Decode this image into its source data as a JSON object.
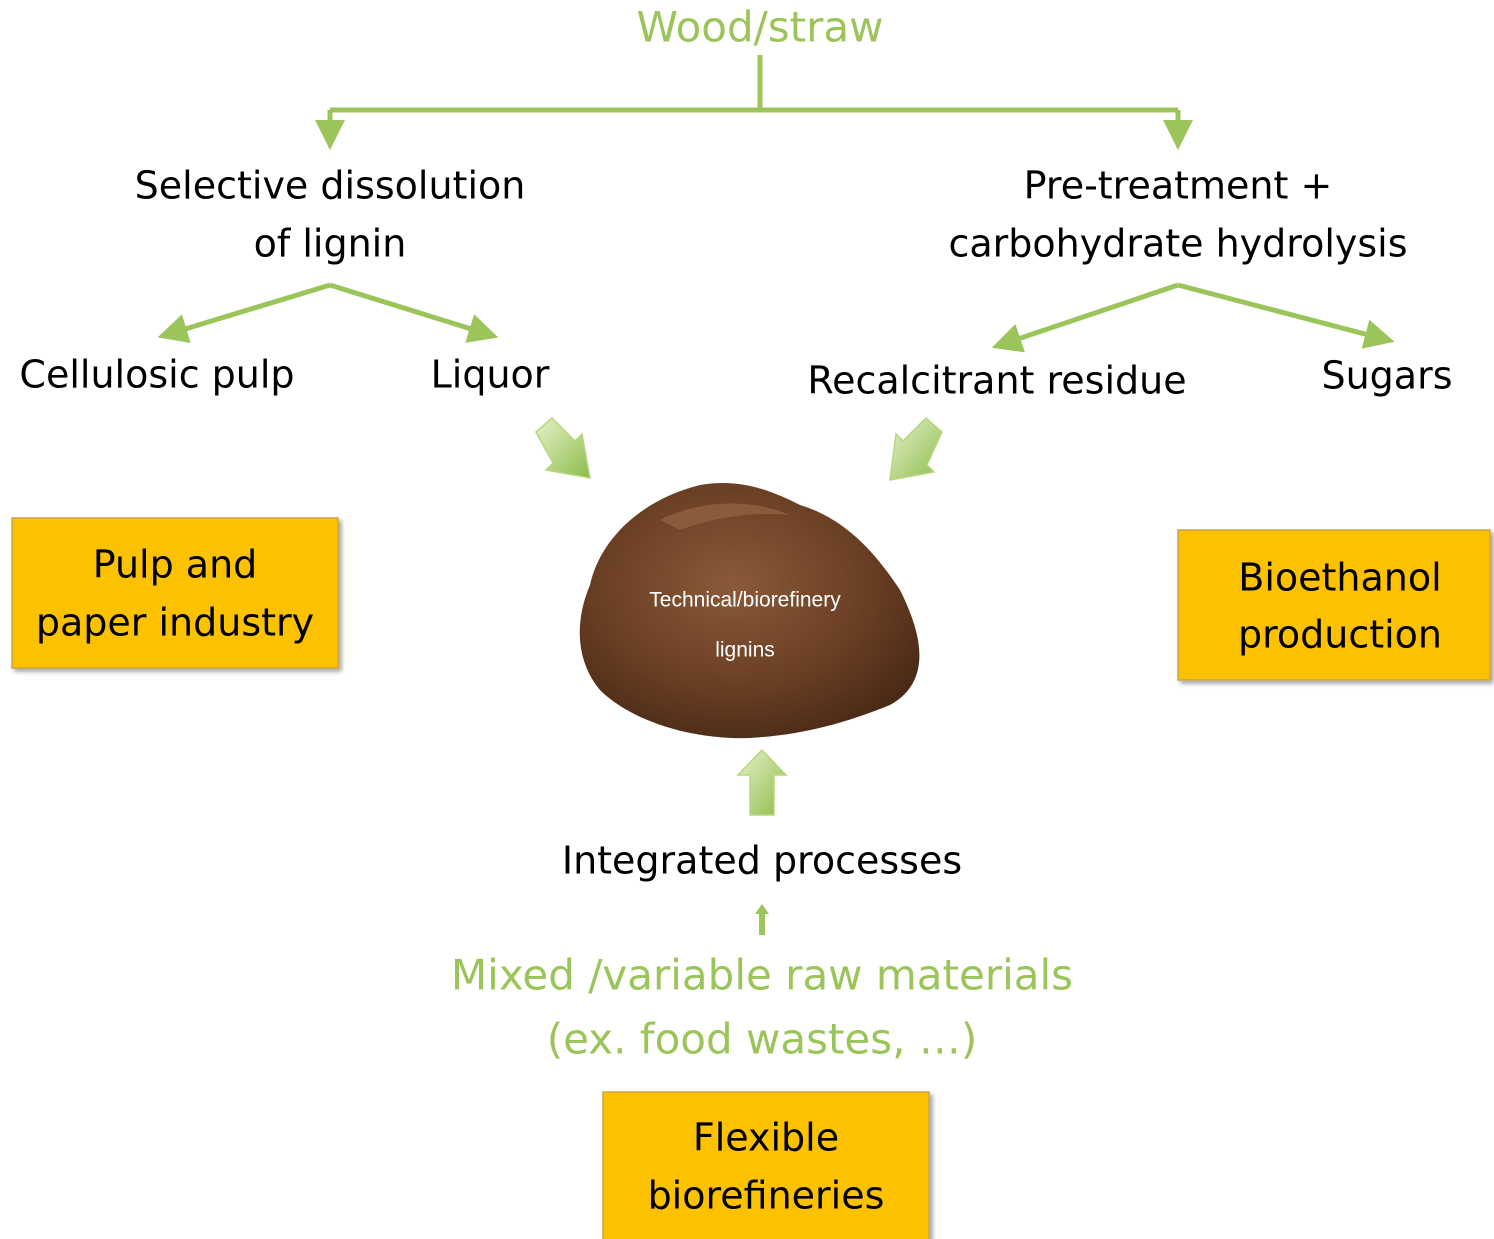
{
  "source": {
    "lines": [
      "Wood/straw"
    ]
  },
  "routes": [
    {
      "process": {
        "lines": [
          "Selective dissolution",
          "of lignin"
        ]
      },
      "products": [
        "Cellulosic pulp",
        "Liquor"
      ],
      "industry": {
        "lines": [
          "Pulp and",
          "paper industry"
        ]
      }
    },
    {
      "process": {
        "lines": [
          "Pre-treatment +",
          "carbohydrate hydrolysis"
        ]
      },
      "products": [
        "Recalcitrant residue",
        "Sugars"
      ],
      "industry": {
        "lines": [
          "Bioethanol",
          "production"
        ]
      }
    }
  ],
  "center": {
    "lines": [
      "Technical/biorefinery",
      "lignins"
    ]
  },
  "integrated": {
    "lines": [
      "Integrated processes"
    ]
  },
  "raw": {
    "lines": [
      "Mixed /variable raw materials",
      "(ex. food wastes, …)"
    ]
  },
  "flexible": {
    "lines": [
      "Flexible",
      "biorefineries"
    ]
  }
}
